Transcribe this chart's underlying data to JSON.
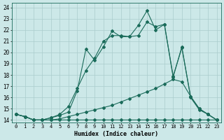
{
  "xlabel": "Humidex (Indice chaleur)",
  "bg_color": "#cce8e8",
  "grid_color": "#aacccc",
  "line_color": "#1a6b5a",
  "xlim": [
    -0.5,
    23.5
  ],
  "ylim": [
    13.8,
    24.4
  ],
  "xticks": [
    0,
    1,
    2,
    3,
    4,
    5,
    6,
    7,
    8,
    9,
    10,
    11,
    12,
    13,
    14,
    15,
    16,
    17,
    18,
    19,
    20,
    21,
    22,
    23
  ],
  "yticks": [
    14,
    15,
    16,
    17,
    18,
    19,
    20,
    21,
    22,
    23,
    24
  ],
  "line1_x": [
    0,
    1,
    2,
    3,
    4,
    5,
    6,
    7,
    8,
    9,
    10,
    11,
    12,
    13,
    14,
    15,
    16,
    17,
    18,
    19,
    20,
    21,
    22,
    23
  ],
  "line1_y": [
    14.5,
    14.3,
    14.0,
    14.0,
    14.0,
    14.0,
    14.0,
    14.0,
    14.0,
    14.0,
    14.0,
    14.0,
    14.0,
    14.0,
    14.0,
    14.0,
    14.0,
    14.0,
    14.0,
    14.0,
    14.0,
    14.0,
    14.0,
    14.0
  ],
  "line2_x": [
    0,
    1,
    2,
    3,
    4,
    5,
    6,
    7,
    8,
    9,
    10,
    11,
    12,
    13,
    14,
    15,
    16,
    17,
    18,
    19,
    20,
    21,
    22,
    23
  ],
  "line2_y": [
    14.5,
    14.3,
    14.0,
    14.0,
    14.2,
    14.5,
    15.2,
    16.8,
    18.4,
    19.5,
    21.0,
    21.5,
    21.5,
    21.4,
    21.5,
    22.7,
    22.3,
    22.5,
    17.8,
    20.5,
    16.0,
    14.9,
    14.5,
    14.0
  ],
  "line3_x": [
    0,
    1,
    2,
    3,
    4,
    5,
    6,
    7,
    8,
    9,
    10,
    11,
    12,
    13,
    14,
    15,
    16,
    17,
    18,
    19,
    20,
    21,
    22,
    23
  ],
  "line3_y": [
    14.5,
    14.3,
    14.0,
    14.0,
    14.2,
    14.4,
    14.7,
    16.6,
    20.3,
    19.3,
    20.5,
    21.9,
    21.4,
    21.4,
    22.4,
    23.7,
    22.0,
    22.5,
    17.9,
    20.4,
    16.1,
    15.0,
    14.5,
    14.0
  ],
  "line4_x": [
    0,
    1,
    2,
    3,
    4,
    5,
    6,
    7,
    8,
    9,
    10,
    11,
    12,
    13,
    14,
    15,
    16,
    17,
    18,
    19,
    20,
    21,
    22,
    23
  ],
  "line4_y": [
    14.5,
    14.3,
    14.0,
    14.0,
    14.0,
    14.1,
    14.3,
    14.5,
    14.7,
    14.9,
    15.1,
    15.3,
    15.6,
    15.9,
    16.2,
    16.5,
    16.8,
    17.2,
    17.6,
    17.4,
    16.1,
    15.0,
    14.5,
    14.0
  ]
}
